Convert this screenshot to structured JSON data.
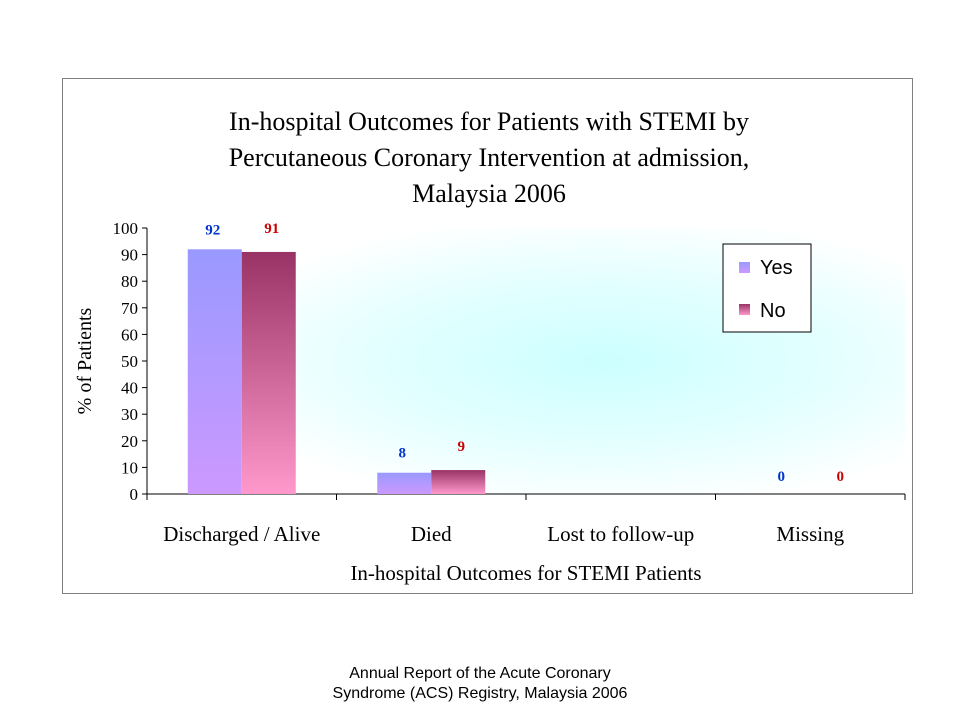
{
  "chart_data": {
    "type": "bar",
    "title_lines": [
      "In-hospital Outcomes for Patients with STEMI by",
      "Percutaneous Coronary Intervention at admission,",
      "Malaysia 2006"
    ],
    "xlabel": "In-hospital Outcomes for STEMI Patients",
    "ylabel": "% of Patients",
    "ylim": [
      0,
      100
    ],
    "yticks": [
      "0",
      "10",
      "20",
      "30",
      "40",
      "50",
      "60",
      "70",
      "80",
      "90",
      "100"
    ],
    "categories": [
      "Discharged / Alive",
      "Died",
      "Lost to follow-up",
      "Missing"
    ],
    "series": [
      {
        "name": "Yes",
        "values": [
          92,
          8,
          null,
          0
        ],
        "labels": [
          "92",
          "8",
          "",
          "0"
        ],
        "color": "#9999ff",
        "color_light": "#cc99ff",
        "label_color": "#0033cc"
      },
      {
        "name": "No",
        "values": [
          91,
          9,
          null,
          0
        ],
        "labels": [
          "91",
          "9",
          "",
          "0"
        ],
        "color": "#993366",
        "color_light": "#ff99cc",
        "label_color": "#cc0000"
      }
    ],
    "legend_position": "top-right",
    "grid": false
  },
  "caption": {
    "line1": "Annual Report of the Acute Coronary",
    "line2": "Syndrome (ACS) Registry, Malaysia 2006"
  }
}
